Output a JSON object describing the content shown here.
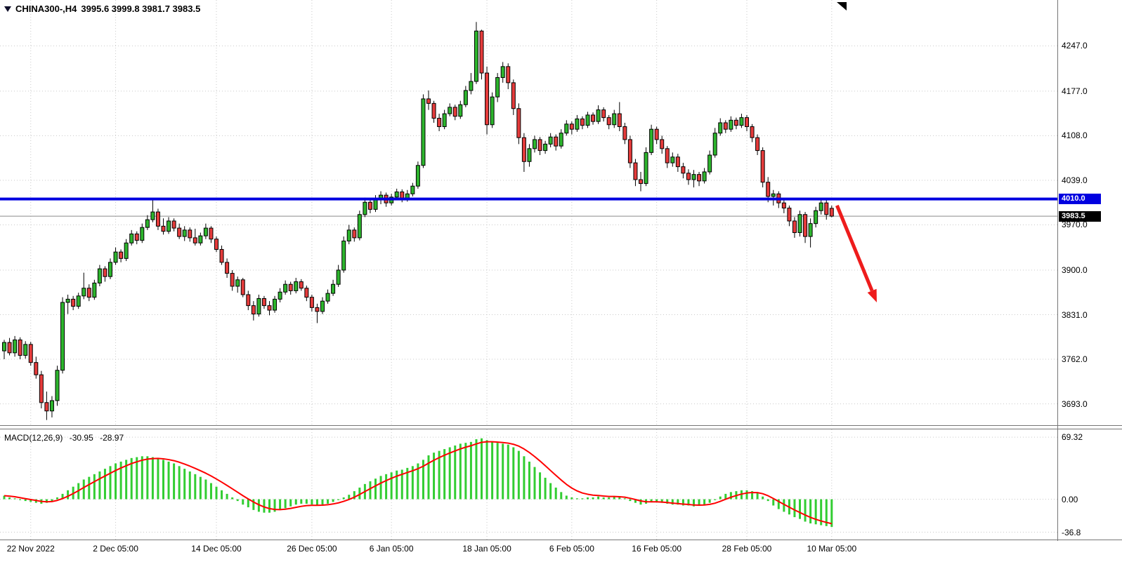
{
  "header": {
    "symbol_timeframe": "CHINA300-,H4",
    "ohlc_text": "3995.6 3999.8 3981.7 3983.5"
  },
  "chart_data": {
    "type": "candlestick",
    "symbol": "CHINA300-",
    "timeframe": "H4",
    "last_bar_ohlc": {
      "open": 3995.6,
      "high": 3999.8,
      "low": 3981.7,
      "close": 3983.5
    },
    "price_axis": {
      "min": 3660,
      "max": 4318,
      "ticks": [
        {
          "price": 4247.0,
          "label": "4247.0"
        },
        {
          "price": 4177.0,
          "label": "4177.0"
        },
        {
          "price": 4108.0,
          "label": "4108.0"
        },
        {
          "price": 4039.0,
          "label": "4039.0"
        },
        {
          "price": 3970.0,
          "label": "3970.0"
        },
        {
          "price": 3900.0,
          "label": "3900.0"
        },
        {
          "price": 3831.0,
          "label": "3831.0"
        },
        {
          "price": 3762.0,
          "label": "3762.0"
        },
        {
          "price": 3693.0,
          "label": "3693.0"
        }
      ]
    },
    "time_axis": {
      "ticks": [
        {
          "bar": 5,
          "label": "22 Nov 2022"
        },
        {
          "bar": 21,
          "label": "2 Dec 05:00"
        },
        {
          "bar": 40,
          "label": "14 Dec 05:00"
        },
        {
          "bar": 58,
          "label": "26 Dec 05:00"
        },
        {
          "bar": 73,
          "label": "6 Jan 05:00"
        },
        {
          "bar": 91,
          "label": "18 Jan 05:00"
        },
        {
          "bar": 107,
          "label": "6 Feb 05:00"
        },
        {
          "bar": 123,
          "label": "16 Feb 05:00"
        },
        {
          "bar": 140,
          "label": "28 Feb 05:00"
        },
        {
          "bar": 156,
          "label": "10 Mar 05:00"
        }
      ]
    },
    "hline": {
      "price": 4010.0,
      "label": "4010.0"
    },
    "last_price": {
      "price": 3983.5,
      "label": "3983.5"
    },
    "arrow": {
      "from_bar": 157,
      "from_price": 4000,
      "to_bar": 164.5,
      "to_price": 3850
    },
    "candles": [
      [
        3775,
        3792,
        3762,
        3788
      ],
      [
        3788,
        3795,
        3768,
        3772
      ],
      [
        3772,
        3798,
        3766,
        3792
      ],
      [
        3792,
        3796,
        3762,
        3768
      ],
      [
        3768,
        3790,
        3763,
        3785
      ],
      [
        3785,
        3789,
        3752,
        3757
      ],
      [
        3757,
        3766,
        3732,
        3738
      ],
      [
        3738,
        3744,
        3686,
        3695
      ],
      [
        3695,
        3712,
        3668,
        3682
      ],
      [
        3682,
        3705,
        3672,
        3698
      ],
      [
        3698,
        3752,
        3690,
        3745
      ],
      [
        3745,
        3858,
        3740,
        3850
      ],
      [
        3850,
        3862,
        3832,
        3855
      ],
      [
        3855,
        3860,
        3838,
        3844
      ],
      [
        3844,
        3865,
        3840,
        3860
      ],
      [
        3860,
        3896,
        3855,
        3872
      ],
      [
        3872,
        3878,
        3852,
        3858
      ],
      [
        3858,
        3885,
        3854,
        3880
      ],
      [
        3880,
        3908,
        3875,
        3902
      ],
      [
        3902,
        3906,
        3882,
        3890
      ],
      [
        3890,
        3918,
        3886,
        3912
      ],
      [
        3912,
        3935,
        3908,
        3928
      ],
      [
        3928,
        3932,
        3912,
        3918
      ],
      [
        3918,
        3948,
        3914,
        3942
      ],
      [
        3942,
        3962,
        3938,
        3956
      ],
      [
        3956,
        3960,
        3940,
        3946
      ],
      [
        3946,
        3972,
        3942,
        3966
      ],
      [
        3966,
        3985,
        3962,
        3978
      ],
      [
        3978,
        4011,
        3974,
        3990
      ],
      [
        3990,
        3995,
        3962,
        3968
      ],
      [
        3968,
        3980,
        3955,
        3960
      ],
      [
        3960,
        3982,
        3956,
        3976
      ],
      [
        3976,
        3980,
        3960,
        3965
      ],
      [
        3965,
        3972,
        3948,
        3952
      ],
      [
        3952,
        3968,
        3945,
        3962
      ],
      [
        3962,
        3966,
        3944,
        3950
      ],
      [
        3950,
        3964,
        3938,
        3942
      ],
      [
        3942,
        3958,
        3938,
        3953
      ],
      [
        3953,
        3972,
        3948,
        3965
      ],
      [
        3965,
        3968,
        3942,
        3948
      ],
      [
        3948,
        3952,
        3928,
        3932
      ],
      [
        3932,
        3938,
        3908,
        3912
      ],
      [
        3912,
        3918,
        3888,
        3895
      ],
      [
        3895,
        3900,
        3868,
        3875
      ],
      [
        3875,
        3890,
        3865,
        3885
      ],
      [
        3885,
        3888,
        3858,
        3862
      ],
      [
        3862,
        3868,
        3838,
        3845
      ],
      [
        3845,
        3852,
        3822,
        3832
      ],
      [
        3832,
        3862,
        3828,
        3856
      ],
      [
        3856,
        3860,
        3840,
        3845
      ],
      [
        3845,
        3852,
        3830,
        3838
      ],
      [
        3838,
        3860,
        3834,
        3855
      ],
      [
        3855,
        3872,
        3850,
        3866
      ],
      [
        3866,
        3884,
        3862,
        3878
      ],
      [
        3878,
        3882,
        3862,
        3868
      ],
      [
        3868,
        3888,
        3864,
        3882
      ],
      [
        3882,
        3886,
        3868,
        3872
      ],
      [
        3872,
        3876,
        3852,
        3858
      ],
      [
        3858,
        3862,
        3836,
        3842
      ],
      [
        3842,
        3848,
        3818,
        3836
      ],
      [
        3836,
        3858,
        3832,
        3852
      ],
      [
        3852,
        3870,
        3848,
        3864
      ],
      [
        3864,
        3885,
        3860,
        3878
      ],
      [
        3878,
        3908,
        3874,
        3900
      ],
      [
        3900,
        3952,
        3896,
        3945
      ],
      [
        3945,
        3970,
        3940,
        3962
      ],
      [
        3962,
        3966,
        3944,
        3950
      ],
      [
        3950,
        3992,
        3946,
        3986
      ],
      [
        3986,
        4012,
        3982,
        4005
      ],
      [
        4005,
        4010,
        3988,
        3994
      ],
      [
        3994,
        4016,
        3990,
        4010
      ],
      [
        4010,
        4022,
        4002,
        4016
      ],
      [
        4016,
        4020,
        3998,
        4004
      ],
      [
        4004,
        4018,
        4000,
        4013
      ],
      [
        4013,
        4026,
        4008,
        4021
      ],
      [
        4021,
        4025,
        4005,
        4010
      ],
      [
        4010,
        4024,
        4006,
        4018
      ],
      [
        4018,
        4035,
        4014,
        4030
      ],
      [
        4030,
        4068,
        4026,
        4062
      ],
      [
        4062,
        4172,
        4058,
        4165
      ],
      [
        4165,
        4178,
        4148,
        4158
      ],
      [
        4158,
        4162,
        4128,
        4135
      ],
      [
        4135,
        4142,
        4115,
        4122
      ],
      [
        4122,
        4148,
        4118,
        4142
      ],
      [
        4142,
        4158,
        4138,
        4152
      ],
      [
        4152,
        4156,
        4132,
        4138
      ],
      [
        4138,
        4162,
        4134,
        4156
      ],
      [
        4156,
        4185,
        4152,
        4178
      ],
      [
        4178,
        4205,
        4172,
        4192
      ],
      [
        4192,
        4284,
        4188,
        4270
      ],
      [
        4270,
        4272,
        4195,
        4205
      ],
      [
        4205,
        4215,
        4110,
        4125
      ],
      [
        4125,
        4175,
        4120,
        4168
      ],
      [
        4168,
        4205,
        4160,
        4198
      ],
      [
        4198,
        4222,
        4190,
        4215
      ],
      [
        4215,
        4220,
        4180,
        4190
      ],
      [
        4190,
        4195,
        4140,
        4150
      ],
      [
        4150,
        4158,
        4095,
        4105
      ],
      [
        4105,
        4112,
        4052,
        4068
      ],
      [
        4068,
        4095,
        4060,
        4088
      ],
      [
        4088,
        4108,
        4082,
        4102
      ],
      [
        4102,
        4106,
        4078,
        4085
      ],
      [
        4085,
        4100,
        4080,
        4095
      ],
      [
        4095,
        4112,
        4090,
        4106
      ],
      [
        4106,
        4110,
        4085,
        4092
      ],
      [
        4092,
        4118,
        4088,
        4112
      ],
      [
        4112,
        4132,
        4108,
        4126
      ],
      [
        4126,
        4130,
        4110,
        4118
      ],
      [
        4118,
        4140,
        4114,
        4134
      ],
      [
        4134,
        4138,
        4118,
        4124
      ],
      [
        4124,
        4145,
        4120,
        4140
      ],
      [
        4140,
        4144,
        4125,
        4130
      ],
      [
        4130,
        4155,
        4126,
        4148
      ],
      [
        4148,
        4152,
        4130,
        4136
      ],
      [
        4136,
        4140,
        4118,
        4125
      ],
      [
        4125,
        4148,
        4120,
        4142
      ],
      [
        4142,
        4160,
        4115,
        4122
      ],
      [
        4122,
        4128,
        4095,
        4102
      ],
      [
        4102,
        4108,
        4058,
        4066
      ],
      [
        4066,
        4072,
        4030,
        4040
      ],
      [
        4040,
        4052,
        4022,
        4034
      ],
      [
        4034,
        4090,
        4030,
        4082
      ],
      [
        4082,
        4125,
        4078,
        4118
      ],
      [
        4118,
        4122,
        4095,
        4102
      ],
      [
        4102,
        4108,
        4080,
        4088
      ],
      [
        4088,
        4092,
        4058,
        4066
      ],
      [
        4066,
        4082,
        4060,
        4075
      ],
      [
        4075,
        4080,
        4052,
        4060
      ],
      [
        4060,
        4066,
        4042,
        4050
      ],
      [
        4050,
        4056,
        4032,
        4040
      ],
      [
        4040,
        4055,
        4028,
        4048
      ],
      [
        4048,
        4052,
        4030,
        4038
      ],
      [
        4038,
        4058,
        4034,
        4052
      ],
      [
        4052,
        4085,
        4048,
        4078
      ],
      [
        4078,
        4120,
        4074,
        4112
      ],
      [
        4112,
        4135,
        4108,
        4128
      ],
      [
        4128,
        4132,
        4112,
        4118
      ],
      [
        4118,
        4138,
        4114,
        4132
      ],
      [
        4132,
        4136,
        4118,
        4124
      ],
      [
        4124,
        4142,
        4120,
        4136
      ],
      [
        4136,
        4140,
        4115,
        4122
      ],
      [
        4122,
        4126,
        4098,
        4105
      ],
      [
        4105,
        4110,
        4078,
        4085
      ],
      [
        4085,
        4090,
        4028,
        4036
      ],
      [
        4036,
        4044,
        4005,
        4014
      ],
      [
        4014,
        4024,
        4000,
        4018
      ],
      [
        4018,
        4022,
        3996,
        4004
      ],
      [
        4004,
        4010,
        3988,
        3996
      ],
      [
        3996,
        4000,
        3968,
        3976
      ],
      [
        3976,
        3982,
        3950,
        3958
      ],
      [
        3958,
        3992,
        3952,
        3986
      ],
      [
        3986,
        3990,
        3942,
        3952
      ],
      [
        3952,
        3980,
        3935,
        3972
      ],
      [
        3972,
        3998,
        3966,
        3992
      ],
      [
        3992,
        4010,
        3986,
        4004
      ],
      [
        4004,
        4008,
        3978,
        3986
      ],
      [
        3995.6,
        3999.8,
        3981.7,
        3983.5
      ]
    ],
    "macd": {
      "label": "MACD(12,26,9)",
      "main_display": "-30.95",
      "signal_display": "-28.97",
      "main_value": -30.95,
      "signal_value": -28.97,
      "range": {
        "min": -45,
        "max": 78
      },
      "ticks": [
        {
          "value": 69.32,
          "label": "69.32"
        },
        {
          "value": 0,
          "label": "0.00"
        },
        {
          "value": -36.8,
          "label": "-36.8"
        }
      ],
      "histogram": [
        4,
        2,
        1,
        -1,
        -2,
        -3,
        -4,
        -5,
        -4,
        -2,
        2,
        6,
        10,
        14,
        18,
        22,
        25,
        28,
        31,
        34,
        37,
        40,
        42,
        44,
        46,
        47,
        48,
        48,
        47,
        46,
        44,
        42,
        40,
        37,
        34,
        31,
        28,
        25,
        22,
        18,
        14,
        10,
        6,
        2,
        -2,
        -6,
        -9,
        -12,
        -14,
        -15,
        -15,
        -14,
        -12,
        -10,
        -8,
        -6,
        -5,
        -5,
        -6,
        -7,
        -6,
        -5,
        -3,
        -1,
        2,
        5,
        9,
        13,
        17,
        20,
        23,
        26,
        28,
        30,
        32,
        33,
        35,
        37,
        40,
        44,
        49,
        52,
        54,
        56,
        58,
        60,
        62,
        63,
        64,
        67,
        68,
        66,
        64,
        63,
        62,
        61,
        58,
        54,
        48,
        42,
        36,
        30,
        24,
        18,
        13,
        8,
        4,
        2,
        1,
        1,
        2,
        2,
        3,
        2,
        2,
        3,
        2,
        1,
        -2,
        -4,
        -6,
        -5,
        -3,
        -3,
        -4,
        -5,
        -6,
        -6,
        -7,
        -7,
        -8,
        -7,
        -6,
        -4,
        -1,
        3,
        6,
        8,
        9,
        10,
        10,
        9,
        7,
        3,
        -2,
        -7,
        -11,
        -14,
        -17,
        -20,
        -22,
        -25,
        -27,
        -28,
        -29,
        -30,
        -30.95
      ]
    }
  },
  "colors": {
    "bull": "#2db52d",
    "bear": "#e53b3b",
    "wick": "#000000",
    "grid": "#c9c9c9",
    "hline": "#0000e0",
    "last_price_line": "#8a8a8a",
    "last_price_tag_bg": "#000000",
    "macd_bar": "#32cd32",
    "macd_signal": "#ff0000",
    "arrow": "#ee1c1c",
    "axis_text": "#000000",
    "shift_marker": "#000000"
  }
}
